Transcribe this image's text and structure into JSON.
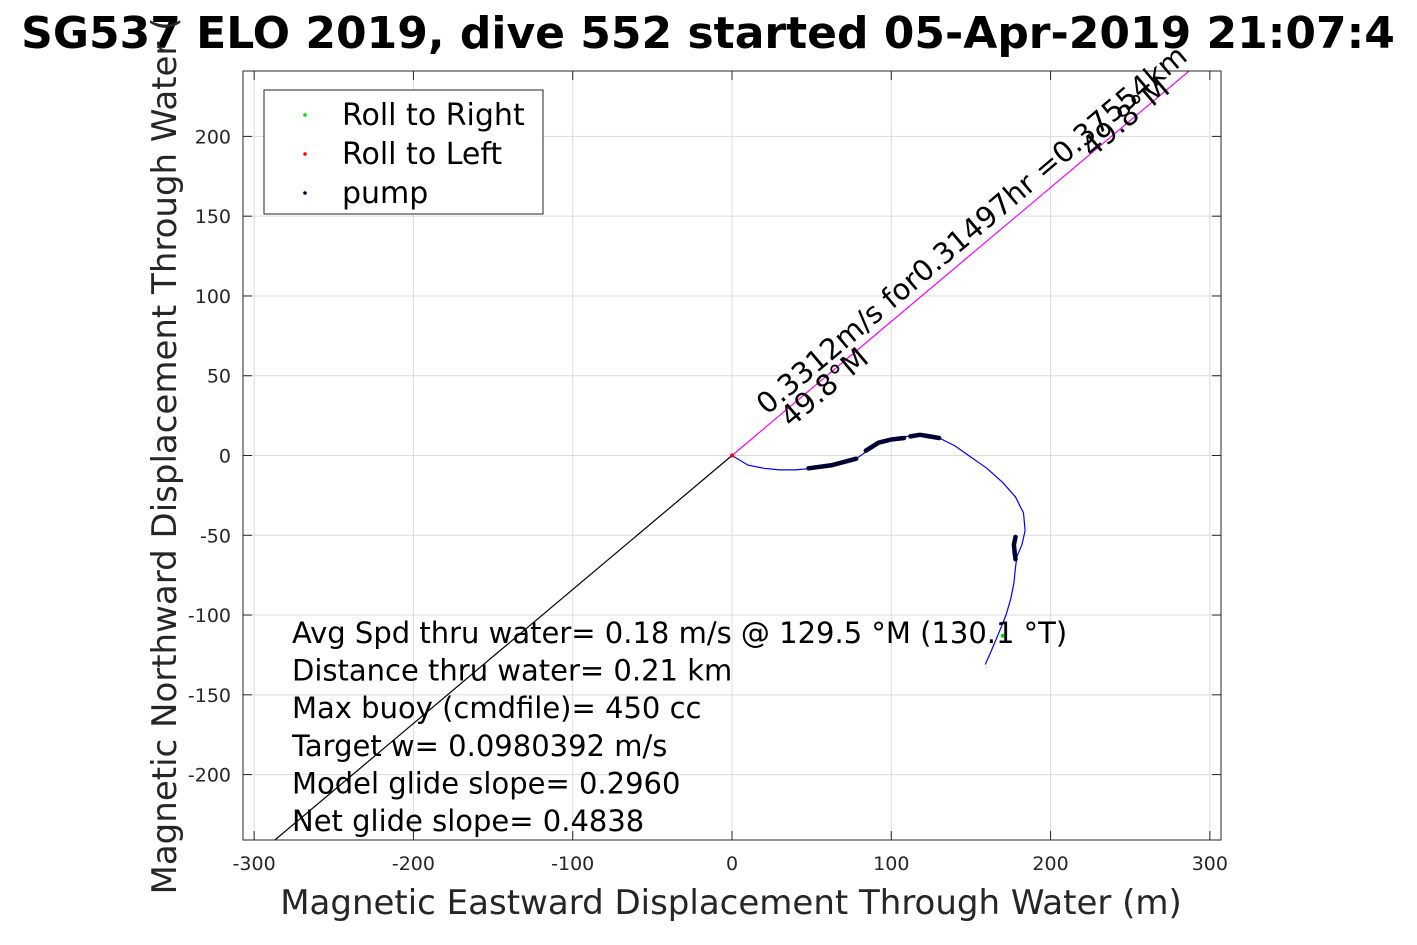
{
  "chart_data": {
    "type": "line",
    "title": "SG537 ELO 2019, dive 552 started 05-Apr-2019 21:07:4",
    "xlabel": "Magnetic Eastward Displacement Through Water (m)",
    "ylabel": "Magnetic Northward Displacement Through Water (",
    "xlim": [
      -307,
      307
    ],
    "ylim": [
      -241,
      241
    ],
    "xticks": [
      -300,
      -200,
      -100,
      0,
      100,
      200,
      300
    ],
    "yticks": [
      -200,
      -150,
      -100,
      -50,
      0,
      50,
      100,
      150,
      200
    ],
    "grid": true,
    "legend_position": "top-left",
    "legend": [
      {
        "label": "Roll to Right",
        "color": "#00dd00"
      },
      {
        "label": "Roll to Left",
        "color": "#ff0000"
      },
      {
        "label": "pump",
        "color": "#000033"
      }
    ],
    "series": [
      {
        "color": "#0000ff",
        "x": [
          0,
          10,
          20,
          30,
          40,
          50,
          60,
          70,
          78,
          85,
          92,
          100,
          110,
          120,
          130,
          140,
          150,
          160,
          170,
          178,
          183,
          184,
          182,
          179,
          178,
          177,
          175,
          172,
          168,
          163,
          159
        ],
        "y": [
          0,
          -6,
          -8,
          -9,
          -9,
          -8,
          -7,
          -5,
          -2,
          3,
          8,
          10,
          12,
          13,
          11,
          6,
          -1,
          -8,
          -17,
          -26,
          -36,
          -47,
          -56,
          -63,
          -70,
          -80,
          -90,
          -100,
          -110,
          -122,
          -131
        ]
      },
      {
        "color": "#000000",
        "x": [
          0,
          -287
        ],
        "y": [
          0,
          -241
        ]
      },
      {
        "color": "#ff00ff",
        "x": [
          0,
          287
        ],
        "y": [
          0,
          241
        ]
      }
    ],
    "pump_segments": [
      {
        "x": [
          48,
          63,
          78
        ],
        "y": [
          -8,
          -6,
          -2
        ]
      },
      {
        "x": [
          84,
          92,
          100,
          108
        ],
        "y": [
          3,
          8,
          10,
          11
        ]
      },
      {
        "x": [
          112,
          118,
          124,
          130
        ],
        "y": [
          12,
          13,
          12,
          11
        ]
      },
      {
        "x": [
          178,
          177,
          177.5,
          178
        ],
        "y": [
          -51,
          -56,
          -61,
          -65
        ]
      }
    ],
    "roll_right_points": [
      {
        "x": 170,
        "y": -113
      }
    ],
    "roll_left_points": [
      {
        "x": 0,
        "y": 0
      }
    ],
    "annotations": [
      {
        "text": "0.3312m/s for0.31497hr =0.37554km",
        "x": 22,
        "y": 25,
        "angle_deg": 40.2
      },
      {
        "text": "49.8°M",
        "x": 37,
        "y": 17,
        "angle_deg": 40.2
      },
      {
        "text": "49.8°M",
        "x": 226,
        "y": 186,
        "angle_deg": 40.2
      }
    ],
    "info_lines": [
      "Avg Spd thru water=  0.18 m/s @ 129.5 °M (130.1 °T)",
      "Distance thru water=  0.21 km",
      "Max buoy (cmdfile)= 450 cc",
      "Target w= 0.0980392 m/s",
      "Model glide slope= 0.2960",
      "Net glide slope= 0.4838"
    ]
  }
}
